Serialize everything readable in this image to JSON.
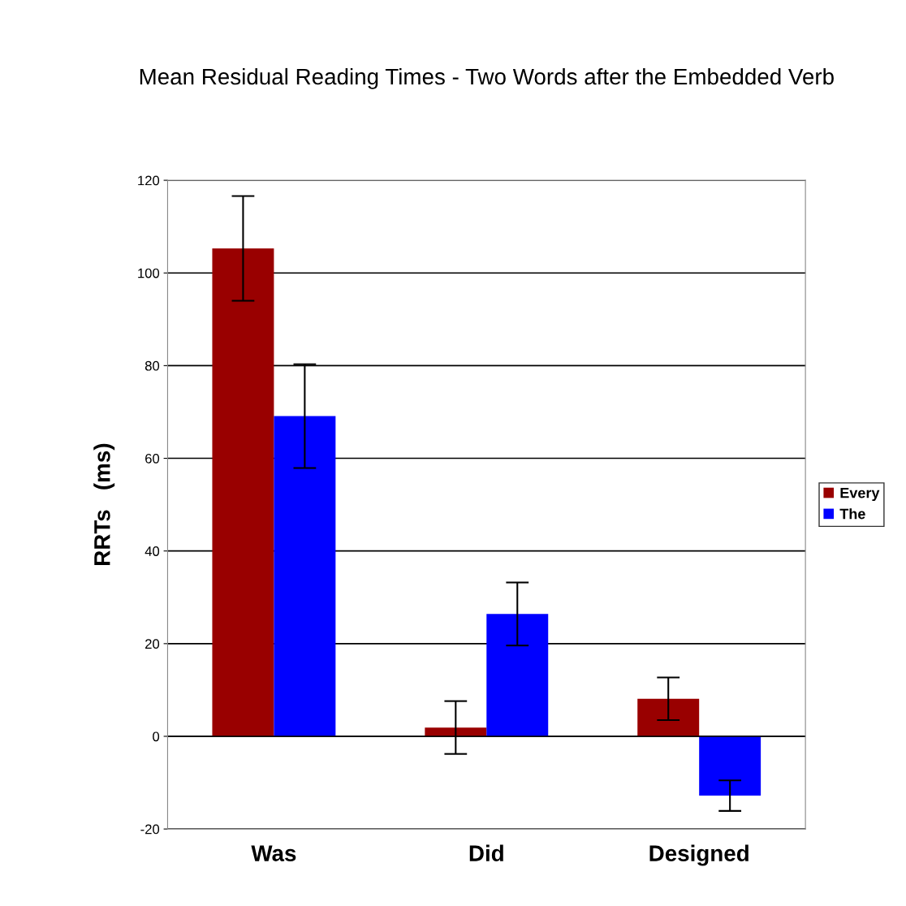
{
  "chart_data": {
    "type": "bar",
    "title": "Mean Residual Reading Times - Two Words after the Embedded Verb",
    "ylabel": "RRTs   (ms)",
    "categories": [
      "Was",
      "Did",
      "Designed"
    ],
    "series": [
      {
        "name": "Every",
        "color": "#990000",
        "values": [
          105.3,
          1.9,
          8.1
        ],
        "errors": [
          11.3,
          5.7,
          4.6
        ]
      },
      {
        "name": "The",
        "color": "#0000ff",
        "values": [
          69.1,
          26.4,
          -12.8
        ],
        "errors": [
          11.2,
          6.8,
          3.3
        ]
      }
    ],
    "ylim": [
      -20,
      120
    ],
    "yticks": [
      -20,
      0,
      20,
      40,
      60,
      80,
      100,
      120
    ],
    "grid": "y",
    "legend": "right"
  }
}
